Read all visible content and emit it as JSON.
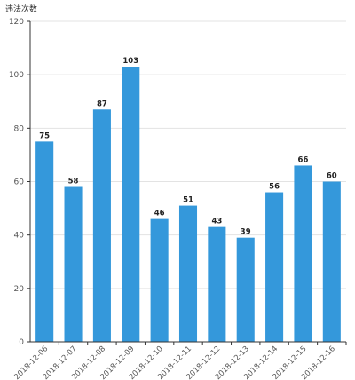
{
  "chart_data": {
    "type": "bar",
    "ylabel": "违法次数",
    "xlabel": "",
    "title": "",
    "categories": [
      "2018-12-06",
      "2018-12-07",
      "2018-12-08",
      "2018-12-09",
      "2018-12-10",
      "2018-12-11",
      "2018-12-12",
      "2018-12-13",
      "2018-12-14",
      "2018-12-15",
      "2018-12-16"
    ],
    "values": [
      75,
      58,
      87,
      103,
      46,
      51,
      43,
      39,
      56,
      66,
      60
    ],
    "ylim": [
      0,
      120
    ],
    "yticks": [
      0,
      20,
      40,
      60,
      80,
      100,
      120
    ],
    "grid": true,
    "bar_color": "#3498db",
    "data_labels": true
  }
}
